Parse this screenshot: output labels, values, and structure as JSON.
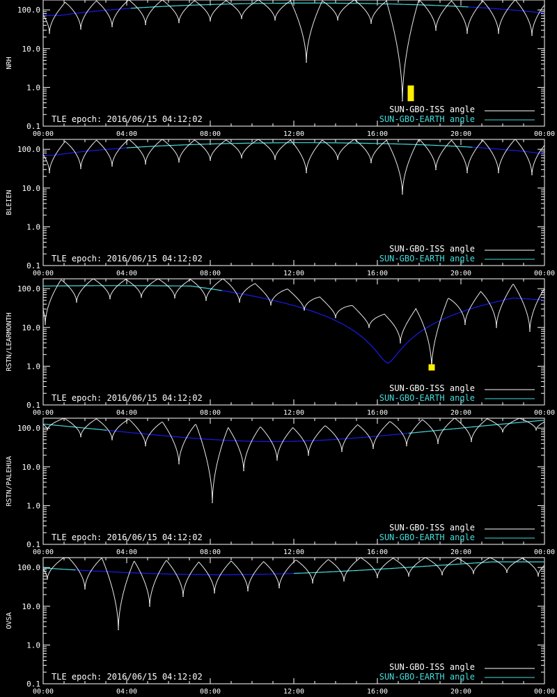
{
  "colors": {
    "background": "#000000",
    "axes": "#ffffff",
    "iss_curve": "#ffffff",
    "earth_curve_day": "#44dddd",
    "earth_curve_night": "#1a1aee",
    "highlight": "#ffee00"
  },
  "legend": {
    "iss_label": "SUN-GBO-ISS angle",
    "earth_label": "SUN-GBO-EARTH angle",
    "epoch_label": "TLE epoch: 2016/06/15 04:12:02"
  },
  "chart_data": [
    {
      "type": "line",
      "ylabel": "NRH",
      "y_scale": "log",
      "ylim": [
        0.1,
        180
      ],
      "y_tick_labels": [
        "100.0",
        "10.0",
        "1.0",
        "0.1"
      ],
      "x_tick_labels": [
        "00:00",
        "04:00",
        "08:00",
        "12:00",
        "16:00",
        "20:00",
        "00:00"
      ],
      "xlim_hours": [
        0,
        24
      ],
      "earth": {
        "min": 72,
        "peak": 150,
        "peak_hour": 12.8,
        "day_start": 4.2,
        "day_end": 20.3
      },
      "iss_min_hours": [
        0.3,
        1.8,
        3.3,
        4.9,
        6.5,
        8.0,
        9.5,
        11.1,
        12.6,
        14.1,
        15.7,
        17.2,
        18.8,
        20.3,
        21.8,
        23.4
      ],
      "iss_min_values": [
        25,
        32,
        37,
        42,
        47,
        52,
        60,
        55,
        4.5,
        55,
        45,
        0.45,
        30,
        25,
        25,
        22
      ],
      "highlight": {
        "hour": 17.6,
        "low": 0.45,
        "high": 1.1
      }
    },
    {
      "type": "line",
      "ylabel": "BLEIEN",
      "y_scale": "log",
      "ylim": [
        0.1,
        180
      ],
      "y_tick_labels": [
        "100.0",
        "10.0",
        "1.0",
        "0.1"
      ],
      "x_tick_labels": [
        "00:00",
        "04:00",
        "08:00",
        "12:00",
        "16:00",
        "20:00",
        "00:00"
      ],
      "xlim_hours": [
        0,
        24
      ],
      "earth": {
        "min": 70,
        "peak": 148,
        "peak_hour": 12.5,
        "day_start": 4.0,
        "day_end": 20.5
      },
      "iss_min_hours": [
        0.3,
        1.8,
        3.3,
        4.9,
        6.5,
        8.0,
        9.5,
        11.1,
        12.6,
        14.1,
        15.7,
        17.2,
        18.8,
        20.3,
        21.8,
        23.4
      ],
      "iss_min_values": [
        25,
        32,
        37,
        42,
        47,
        52,
        60,
        55,
        25,
        55,
        45,
        7,
        30,
        25,
        25,
        22
      ]
    },
    {
      "type": "line",
      "ylabel": "RSTN/LEARMONTH",
      "y_scale": "log",
      "ylim": [
        0.1,
        180
      ],
      "y_tick_labels": [
        "100.0",
        "10.0",
        "1.0",
        "0.1"
      ],
      "x_tick_labels": [
        "00:00",
        "04:00",
        "08:00",
        "12:00",
        "16:00",
        "20:00",
        "00:00"
      ],
      "xlim_hours": [
        0,
        24
      ],
      "earth": {
        "min": 1.2,
        "peak": 120,
        "peak_hour": 3.5,
        "min_hour": 16.5,
        "day_start": 0.0,
        "day_end": 8.5
      },
      "iss_min_hours": [
        0.1,
        1.6,
        3.2,
        4.7,
        6.3,
        7.8,
        9.4,
        10.9,
        12.5,
        14.0,
        15.6,
        17.1,
        18.6,
        20.2,
        21.7,
        23.3
      ],
      "iss_min_values": [
        12,
        45,
        55,
        60,
        58,
        50,
        45,
        38,
        28,
        18,
        10,
        4.0,
        0.9,
        12,
        10,
        8
      ],
      "highlight": {
        "hour": 18.6,
        "low": 0.85,
        "high": 1.1
      }
    },
    {
      "type": "line",
      "ylabel": "RSTN/PALEHUA",
      "y_scale": "log",
      "ylim": [
        0.1,
        180
      ],
      "y_tick_labels": [
        "100.0",
        "10.0",
        "1.0",
        "0.1"
      ],
      "x_tick_labels": [
        "00:00",
        "04:00",
        "08:00",
        "12:00",
        "16:00",
        "20:00",
        "00:00"
      ],
      "xlim_hours": [
        0,
        24
      ],
      "earth": {
        "max": 160,
        "min": 45,
        "min_hour": 11.0,
        "day_start": 17.5,
        "day_end": 24.0,
        "day2_start": 0.0,
        "day2_end": 3.0
      },
      "iss_min_hours": [
        0.2,
        1.8,
        3.3,
        4.9,
        6.5,
        8.1,
        9.6,
        11.2,
        12.7,
        14.3,
        15.8,
        17.4,
        18.9,
        20.5,
        22.0,
        23.6
      ],
      "iss_min_values": [
        90,
        60,
        50,
        35,
        12,
        1.2,
        8,
        15,
        20,
        25,
        30,
        35,
        40,
        45,
        80,
        90
      ]
    },
    {
      "type": "line",
      "ylabel": "OVSA",
      "y_scale": "log",
      "ylim": [
        0.1,
        180
      ],
      "y_tick_labels": [
        "100.0",
        "10.0",
        "1.0",
        "0.1"
      ],
      "x_tick_labels": [
        "00:00",
        "04:00",
        "08:00",
        "12:00",
        "16:00",
        "20:00",
        "00:00"
      ],
      "xlim_hours": [
        0,
        24
      ],
      "earth": {
        "max": 140,
        "min": 65,
        "min_hour": 8.5,
        "day_start": 12.0,
        "day_end": 24.0,
        "day2_start": 0.0,
        "day2_end": 1.5
      },
      "iss_min_hours": [
        0.2,
        2.0,
        3.6,
        5.1,
        6.7,
        8.2,
        9.8,
        11.3,
        12.9,
        14.4,
        16.0,
        17.5,
        19.1,
        20.6,
        22.2,
        23.7
      ],
      "iss_min_values": [
        50,
        28,
        2.5,
        10,
        18,
        22,
        25,
        30,
        40,
        45,
        55,
        60,
        65,
        70,
        75,
        60
      ]
    }
  ]
}
